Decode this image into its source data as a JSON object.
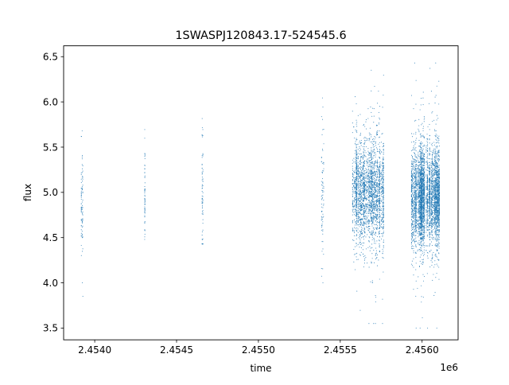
{
  "chart_data": {
    "type": "scatter",
    "title": "1SWASPJ120843.17-524545.6",
    "xlabel": "time",
    "ylabel": "flux",
    "x_offset_label": "1e6",
    "xlim": [
      2453810,
      2456220
    ],
    "ylim": [
      3.37,
      6.62
    ],
    "x_ticks": [
      2454000,
      2454500,
      2455000,
      2455500,
      2456000
    ],
    "x_tick_labels": [
      "2.4540",
      "2.4545",
      "2.4550",
      "2.4555",
      "2.4560"
    ],
    "y_ticks": [
      3.5,
      4.0,
      4.5,
      5.0,
      5.5,
      6.0,
      6.5
    ],
    "y_tick_labels": [
      "3.5",
      "4.0",
      "4.5",
      "5.0",
      "5.5",
      "6.0",
      "6.5"
    ],
    "grid": false,
    "color": "#1f77b4",
    "clusters": [
      {
        "time_range": [
          2453918,
          2453928
        ],
        "flux_mean": 4.9,
        "flux_std": 0.3,
        "flux_range": [
          3.85,
          5.68
        ],
        "approx_points": 90
      },
      {
        "time_range": [
          2454303,
          2454309
        ],
        "flux_mean": 5.0,
        "flux_std": 0.3,
        "flux_range": [
          4.23,
          5.76
        ],
        "approx_points": 60
      },
      {
        "time_range": [
          2454656,
          2454664
        ],
        "flux_mean": 5.0,
        "flux_std": 0.35,
        "flux_range": [
          4.43,
          6.48
        ],
        "approx_points": 70
      },
      {
        "time_range": [
          2455385,
          2455400
        ],
        "flux_mean": 5.0,
        "flux_std": 0.4,
        "flux_range": [
          4.0,
          6.13
        ],
        "approx_points": 80
      },
      {
        "time_range": [
          2455575,
          2455765
        ],
        "flux_mean": 5.0,
        "flux_std": 0.28,
        "flux_range": [
          3.55,
          6.35
        ],
        "approx_points": 2500
      },
      {
        "time_range": [
          2455935,
          2456108
        ],
        "flux_mean": 4.95,
        "flux_std": 0.27,
        "flux_range": [
          3.5,
          6.43
        ],
        "approx_points": 4000
      }
    ]
  }
}
